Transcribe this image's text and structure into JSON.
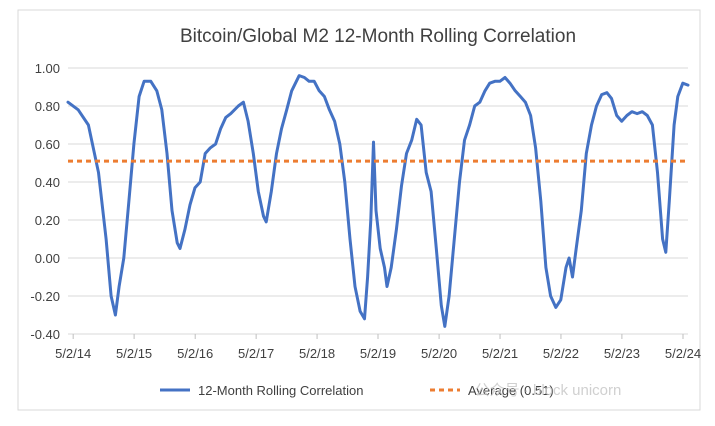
{
  "chart_data": {
    "type": "line",
    "title": "Bitcoin/Global M2 12-Month Rolling Correlation",
    "xlabel": "",
    "ylabel": "",
    "ylim": [
      -0.4,
      1.0
    ],
    "xlim": [
      "2014-04-01",
      "2024-06-01"
    ],
    "yticks": [
      -0.4,
      -0.2,
      0.0,
      0.2,
      0.4,
      0.6,
      0.8,
      1.0
    ],
    "ytick_labels": [
      "-0.40",
      "-0.20",
      "0.00",
      "0.20",
      "0.40",
      "0.60",
      "0.80",
      "1.00"
    ],
    "xticks": [
      "2014-05-02",
      "2015-05-02",
      "2016-05-02",
      "2017-05-02",
      "2018-05-02",
      "2019-05-02",
      "2020-05-02",
      "2021-05-02",
      "2022-05-02",
      "2023-05-02",
      "2024-05-02"
    ],
    "xtick_labels": [
      "5/2/14",
      "5/2/15",
      "5/2/16",
      "5/2/17",
      "5/2/18",
      "5/2/19",
      "5/2/20",
      "5/2/21",
      "5/2/22",
      "5/2/23",
      "5/2/24"
    ],
    "grid": true,
    "legend_position": "bottom",
    "series": [
      {
        "name": "12-Month Rolling Correlation",
        "color": "#4472C4",
        "points": [
          [
            "2014-04-01",
            0.82
          ],
          [
            "2014-06-01",
            0.78
          ],
          [
            "2014-08-01",
            0.7
          ],
          [
            "2014-10-01",
            0.45
          ],
          [
            "2014-11-15",
            0.1
          ],
          [
            "2014-12-15",
            -0.2
          ],
          [
            "2015-01-10",
            -0.3
          ],
          [
            "2015-02-01",
            -0.15
          ],
          [
            "2015-03-01",
            0.0
          ],
          [
            "2015-04-01",
            0.3
          ],
          [
            "2015-05-01",
            0.6
          ],
          [
            "2015-06-01",
            0.85
          ],
          [
            "2015-07-01",
            0.93
          ],
          [
            "2015-08-10",
            0.93
          ],
          [
            "2015-09-15",
            0.88
          ],
          [
            "2015-10-15",
            0.78
          ],
          [
            "2015-11-15",
            0.55
          ],
          [
            "2015-12-15",
            0.25
          ],
          [
            "2016-01-15",
            0.08
          ],
          [
            "2016-02-01",
            0.05
          ],
          [
            "2016-03-01",
            0.15
          ],
          [
            "2016-04-01",
            0.28
          ],
          [
            "2016-05-01",
            0.37
          ],
          [
            "2016-06-01",
            0.4
          ],
          [
            "2016-07-01",
            0.55
          ],
          [
            "2016-08-01",
            0.58
          ],
          [
            "2016-09-01",
            0.6
          ],
          [
            "2016-10-01",
            0.68
          ],
          [
            "2016-11-01",
            0.74
          ],
          [
            "2016-12-01",
            0.76
          ],
          [
            "2017-01-15",
            0.8
          ],
          [
            "2017-02-15",
            0.82
          ],
          [
            "2017-03-15",
            0.72
          ],
          [
            "2017-04-15",
            0.55
          ],
          [
            "2017-05-15",
            0.35
          ],
          [
            "2017-06-15",
            0.22
          ],
          [
            "2017-07-01",
            0.19
          ],
          [
            "2017-08-01",
            0.35
          ],
          [
            "2017-09-01",
            0.55
          ],
          [
            "2017-10-01",
            0.68
          ],
          [
            "2017-11-01",
            0.78
          ],
          [
            "2017-12-01",
            0.88
          ],
          [
            "2018-01-15",
            0.96
          ],
          [
            "2018-02-15",
            0.95
          ],
          [
            "2018-03-15",
            0.93
          ],
          [
            "2018-04-15",
            0.93
          ],
          [
            "2018-05-15",
            0.88
          ],
          [
            "2018-06-15",
            0.85
          ],
          [
            "2018-07-15",
            0.78
          ],
          [
            "2018-08-15",
            0.72
          ],
          [
            "2018-09-15",
            0.6
          ],
          [
            "2018-10-15",
            0.4
          ],
          [
            "2018-11-15",
            0.1
          ],
          [
            "2018-12-15",
            -0.15
          ],
          [
            "2019-01-15",
            -0.28
          ],
          [
            "2019-02-10",
            -0.32
          ],
          [
            "2019-03-01",
            -0.1
          ],
          [
            "2019-03-20",
            0.2
          ],
          [
            "2019-04-05",
            0.61
          ],
          [
            "2019-04-20",
            0.25
          ],
          [
            "2019-05-15",
            0.05
          ],
          [
            "2019-06-10",
            -0.05
          ],
          [
            "2019-06-25",
            -0.15
          ],
          [
            "2019-07-20",
            -0.05
          ],
          [
            "2019-08-20",
            0.15
          ],
          [
            "2019-09-20",
            0.38
          ],
          [
            "2019-10-20",
            0.55
          ],
          [
            "2019-11-20",
            0.62
          ],
          [
            "2019-12-20",
            0.73
          ],
          [
            "2020-01-15",
            0.7
          ],
          [
            "2020-02-15",
            0.45
          ],
          [
            "2020-03-15",
            0.35
          ],
          [
            "2020-04-15",
            0.05
          ],
          [
            "2020-05-15",
            -0.25
          ],
          [
            "2020-06-05",
            -0.36
          ],
          [
            "2020-07-01",
            -0.2
          ],
          [
            "2020-08-01",
            0.1
          ],
          [
            "2020-09-01",
            0.4
          ],
          [
            "2020-10-01",
            0.62
          ],
          [
            "2020-11-01",
            0.7
          ],
          [
            "2020-12-01",
            0.8
          ],
          [
            "2021-01-01",
            0.82
          ],
          [
            "2021-02-01",
            0.88
          ],
          [
            "2021-03-01",
            0.92
          ],
          [
            "2021-04-01",
            0.93
          ],
          [
            "2021-05-01",
            0.93
          ],
          [
            "2021-06-01",
            0.95
          ],
          [
            "2021-07-01",
            0.92
          ],
          [
            "2021-08-01",
            0.88
          ],
          [
            "2021-09-01",
            0.85
          ],
          [
            "2021-10-01",
            0.82
          ],
          [
            "2021-11-01",
            0.75
          ],
          [
            "2021-12-01",
            0.58
          ],
          [
            "2022-01-01",
            0.3
          ],
          [
            "2022-02-01",
            -0.05
          ],
          [
            "2022-03-01",
            -0.2
          ],
          [
            "2022-04-01",
            -0.26
          ],
          [
            "2022-05-01",
            -0.22
          ],
          [
            "2022-06-01",
            -0.05
          ],
          [
            "2022-06-20",
            0.0
          ],
          [
            "2022-07-10",
            -0.1
          ],
          [
            "2022-08-01",
            0.05
          ],
          [
            "2022-09-01",
            0.25
          ],
          [
            "2022-10-01",
            0.55
          ],
          [
            "2022-11-01",
            0.7
          ],
          [
            "2022-12-01",
            0.8
          ],
          [
            "2023-01-01",
            0.86
          ],
          [
            "2023-02-01",
            0.87
          ],
          [
            "2023-03-01",
            0.84
          ],
          [
            "2023-04-01",
            0.75
          ],
          [
            "2023-05-01",
            0.72
          ],
          [
            "2023-06-01",
            0.75
          ],
          [
            "2023-07-01",
            0.77
          ],
          [
            "2023-08-01",
            0.76
          ],
          [
            "2023-09-01",
            0.77
          ],
          [
            "2023-10-01",
            0.75
          ],
          [
            "2023-11-01",
            0.7
          ],
          [
            "2023-12-01",
            0.45
          ],
          [
            "2024-01-01",
            0.1
          ],
          [
            "2024-01-20",
            0.03
          ],
          [
            "2024-02-10",
            0.3
          ],
          [
            "2024-03-10",
            0.7
          ],
          [
            "2024-04-01",
            0.85
          ],
          [
            "2024-05-01",
            0.92
          ],
          [
            "2024-06-01",
            0.91
          ]
        ]
      },
      {
        "name": "Average (0.51)",
        "color": "#ED7D31",
        "dashed": true,
        "points": [
          [
            "2014-04-01",
            0.51
          ],
          [
            "2024-06-01",
            0.51
          ]
        ]
      }
    ]
  },
  "watermark": {
    "text": "公众号 · block unicorn"
  }
}
